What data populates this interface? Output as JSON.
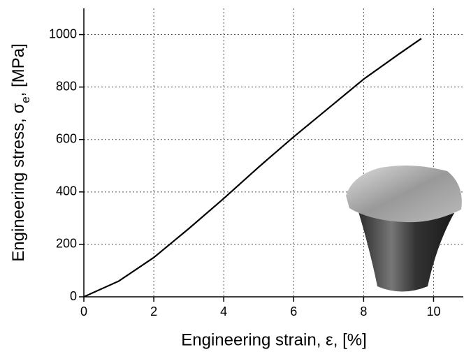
{
  "chart_data": {
    "type": "line",
    "x_label": "Engineering strain, ε, [%]",
    "y_label": {
      "main": "Engineering stress, σ",
      "sub": "e",
      "tail": ", [MPa]"
    },
    "x": [
      0,
      1,
      2,
      3,
      4,
      5,
      6,
      7,
      8,
      9,
      9.65
    ],
    "series": [
      {
        "color": "#000000",
        "values": [
          0,
          60,
          150,
          260,
          375,
          495,
          610,
          720,
          830,
          925,
          985
        ]
      }
    ],
    "xlim": [
      0,
      10.85
    ],
    "ylim": [
      0,
      1100
    ],
    "xticks": [
      0,
      2,
      4,
      6,
      8,
      10
    ],
    "yticks": [
      0,
      200,
      400,
      600,
      800,
      1000
    ],
    "grid": true
  }
}
